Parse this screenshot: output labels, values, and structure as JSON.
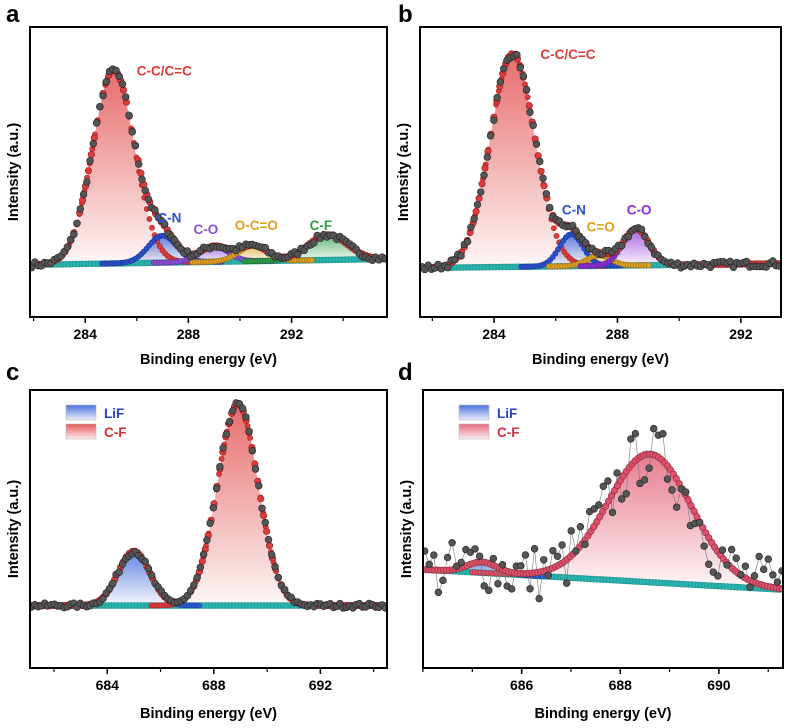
{
  "chart_data": [
    {
      "panel": "a",
      "type": "line",
      "xlabel": "Binding energy (eV)",
      "ylabel": "Intensity (a.u.)",
      "xlim": [
        281.86,
        295.7
      ],
      "ylim": [
        -0.27,
        1.23
      ],
      "xticks": [
        284,
        288,
        292
      ],
      "minor_step": 2,
      "baseline": [
        0,
        0.03
      ],
      "noise": 0.015,
      "components": [
        {
          "name": "C-C/C=C",
          "center": 285.1,
          "height": 1.0,
          "fwhm": 1.9,
          "color": "#e03a3a",
          "label_x": 286.0,
          "label_y": 0.98
        },
        {
          "name": "C-N",
          "center": 287.0,
          "height": 0.14,
          "fwhm": 1.3,
          "color": "#2a4fd0",
          "label_x": 286.8,
          "label_y": 0.22
        },
        {
          "name": "C-O",
          "center": 289.0,
          "height": 0.08,
          "fwhm": 1.3,
          "color": "#8a4fd8",
          "label_x": 288.2,
          "label_y": 0.16
        },
        {
          "name": "O-C=O",
          "center": 290.5,
          "height": 0.08,
          "fwhm": 1.3,
          "color": "#e0a020",
          "label_x": 289.8,
          "label_y": 0.18
        },
        {
          "name": "C-F",
          "center": 293.4,
          "height": 0.13,
          "fwhm": 1.8,
          "color": "#2e9e4a",
          "label_x": 292.7,
          "label_y": 0.18
        }
      ],
      "legend": null
    },
    {
      "panel": "b",
      "type": "line",
      "xlabel": "Binding energy (eV)",
      "ylabel": "Intensity (a.u.)",
      "xlim": [
        281.6,
        293.3
      ],
      "ylim": [
        -0.23,
        1.13
      ],
      "xticks": [
        284,
        288,
        292
      ],
      "minor_step": 2,
      "baseline": [
        0,
        0.02
      ],
      "noise": 0.015,
      "components": [
        {
          "name": "C-C/C=C",
          "center": 284.6,
          "height": 1.0,
          "fwhm": 1.7,
          "color": "#e03a3a",
          "label_x": 285.5,
          "label_y": 0.98
        },
        {
          "name": "C-N",
          "center": 286.5,
          "height": 0.15,
          "fwhm": 0.9,
          "color": "#2a4fd0",
          "label_x": 286.2,
          "label_y": 0.25
        },
        {
          "name": "C=O",
          "center": 287.4,
          "height": 0.05,
          "fwhm": 0.9,
          "color": "#e0a020",
          "label_x": 287.0,
          "label_y": 0.17
        },
        {
          "name": "C-O",
          "center": 288.6,
          "height": 0.17,
          "fwhm": 1.0,
          "color": "#8a2fd8",
          "label_x": 288.3,
          "label_y": 0.25
        }
      ],
      "legend": null
    },
    {
      "panel": "c",
      "type": "line",
      "xlabel": "Binding energy (eV)",
      "ylabel": "Intensity (a.u.)",
      "xlim": [
        681.1,
        694.5
      ],
      "ylim": [
        -0.31,
        1.07
      ],
      "xticks": [
        684,
        688,
        692
      ],
      "minor_step": 2,
      "baseline": [
        0,
        0
      ],
      "noise": 0.012,
      "components": [
        {
          "name": "LiF",
          "center": 685.0,
          "height": 0.27,
          "fwhm": 1.4,
          "color": "#2a5bd7"
        },
        {
          "name": "C-F",
          "center": 688.9,
          "height": 1.0,
          "fwhm": 1.8,
          "color": "#e03a3a"
        }
      ],
      "legend": {
        "placement": "top-left",
        "entries": [
          "LiF",
          "C-F"
        ]
      }
    },
    {
      "panel": "d",
      "type": "line",
      "xlabel": "Binding energy (eV)",
      "ylabel": "Intensity (a.u.)",
      "xlim": [
        684.0,
        691.3
      ],
      "ylim": [
        -0.73,
        1.33
      ],
      "xticks": [
        686,
        688,
        690
      ],
      "minor_step": 1,
      "baseline": [
        0,
        -0.15
      ],
      "noise": 0.22,
      "components": [
        {
          "name": "LiF",
          "center": 685.2,
          "height": 0.08,
          "fwhm": 0.7,
          "color": "#2a5bd7"
        },
        {
          "name": "C-F",
          "center": 688.6,
          "height": 0.95,
          "fwhm": 2.0,
          "color": "#e0506a"
        }
      ],
      "legend": {
        "placement": "top-left",
        "entries": [
          "LiF",
          "C-F"
        ]
      }
    }
  ],
  "colors": {
    "baseline": "#2ab5b0",
    "raw_data": "#555555",
    "axis": "#000000"
  }
}
